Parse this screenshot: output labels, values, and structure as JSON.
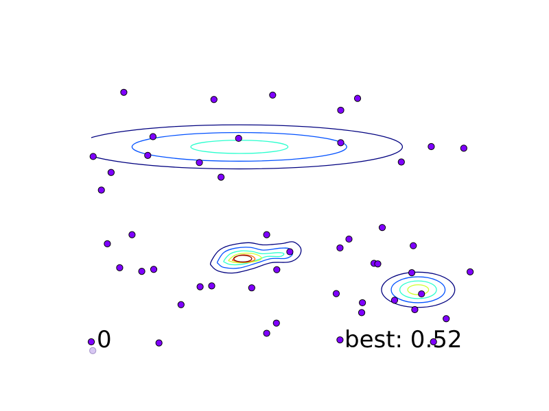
{
  "iteration_label": "0",
  "best_label": "best: 0.52",
  "colors": {
    "point_fill": "#7f00ff",
    "point_edge": "#000000",
    "ghost_point_fill": "#d7c7f2",
    "ghost_point_edge": "#a493c8"
  },
  "chart_data": {
    "type": "scatter",
    "title": "",
    "xlabel": "",
    "ylabel": "",
    "xlim": [
      0,
      1
    ],
    "ylim": [
      0,
      1
    ],
    "grid": false,
    "axes_visible": false,
    "points": [
      [
        0.087,
        0.906
      ],
      [
        0.328,
        0.88
      ],
      [
        0.485,
        0.896
      ],
      [
        0.712,
        0.884
      ],
      [
        0.667,
        0.841
      ],
      [
        0.165,
        0.745
      ],
      [
        0.394,
        0.739
      ],
      [
        0.667,
        0.723
      ],
      [
        0.909,
        0.709
      ],
      [
        0.996,
        0.703
      ],
      [
        0.005,
        0.673
      ],
      [
        0.151,
        0.677
      ],
      [
        0.289,
        0.651
      ],
      [
        0.829,
        0.653
      ],
      [
        0.053,
        0.615
      ],
      [
        0.347,
        0.598
      ],
      [
        0.027,
        0.551
      ],
      [
        0.109,
        0.389
      ],
      [
        0.469,
        0.389
      ],
      [
        0.689,
        0.373
      ],
      [
        0.778,
        0.415
      ],
      [
        0.043,
        0.356
      ],
      [
        0.861,
        0.349
      ],
      [
        0.531,
        0.327
      ],
      [
        0.665,
        0.341
      ],
      [
        0.756,
        0.285
      ],
      [
        0.766,
        0.283
      ],
      [
        0.076,
        0.269
      ],
      [
        0.135,
        0.256
      ],
      [
        0.167,
        0.263
      ],
      [
        0.496,
        0.262
      ],
      [
        0.857,
        0.251
      ],
      [
        1.013,
        0.254
      ],
      [
        0.291,
        0.2
      ],
      [
        0.322,
        0.203
      ],
      [
        0.429,
        0.196
      ],
      [
        0.655,
        0.175
      ],
      [
        0.883,
        0.174
      ],
      [
        0.811,
        0.151
      ],
      [
        0.725,
        0.142
      ],
      [
        0.24,
        0.135
      ],
      [
        0.865,
        0.117
      ],
      [
        0.723,
        0.106
      ],
      [
        0.949,
        0.084
      ],
      [
        0.495,
        0.068
      ],
      [
        0.469,
        0.031
      ],
      [
        0.0,
        0.0
      ],
      [
        0.181,
        -0.004
      ],
      [
        0.665,
        0.007
      ],
      [
        0.915,
        0.0
      ]
    ],
    "ghost_points": [
      [
        0.004,
        -0.032
      ]
    ],
    "contours": [
      {
        "name": "top-ellipse",
        "center": [
          0.396,
          0.708
        ],
        "levels": [
          {
            "color": "#00007f",
            "rx": 0.436,
            "ry": 0.08
          },
          {
            "color": "#0050ff",
            "rx": 0.287,
            "ry": 0.052
          },
          {
            "color": "#29ffce",
            "rx": 0.13,
            "ry": 0.024
          }
        ]
      },
      {
        "name": "middle-blob",
        "levels": [
          {
            "color": "#00007f",
            "path": [
              [
                0.32,
                0.29
              ],
              [
                0.34,
                0.33
              ],
              [
                0.37,
                0.35
              ],
              [
                0.42,
                0.36
              ],
              [
                0.46,
                0.352
              ],
              [
                0.51,
                0.357
              ],
              [
                0.54,
                0.363
              ],
              [
                0.56,
                0.34
              ],
              [
                0.555,
                0.31
              ],
              [
                0.53,
                0.29
              ],
              [
                0.48,
                0.287
              ],
              [
                0.43,
                0.265
              ],
              [
                0.38,
                0.25
              ],
              [
                0.34,
                0.257
              ],
              [
                0.322,
                0.275
              ]
            ]
          },
          {
            "color": "#0050ff",
            "path": [
              [
                0.338,
                0.292
              ],
              [
                0.355,
                0.325
              ],
              [
                0.385,
                0.34
              ],
              [
                0.425,
                0.343
              ],
              [
                0.46,
                0.333
              ],
              [
                0.505,
                0.34
              ],
              [
                0.53,
                0.338
              ],
              [
                0.538,
                0.318
              ],
              [
                0.52,
                0.303
              ],
              [
                0.48,
                0.302
              ],
              [
                0.44,
                0.285
              ],
              [
                0.395,
                0.268
              ],
              [
                0.355,
                0.27
              ],
              [
                0.34,
                0.283
              ]
            ]
          },
          {
            "color": "#29ffce",
            "path": [
              [
                0.355,
                0.295
              ],
              [
                0.372,
                0.32
              ],
              [
                0.4,
                0.33
              ],
              [
                0.43,
                0.328
              ],
              [
                0.458,
                0.32
              ],
              [
                0.5,
                0.324
              ],
              [
                0.515,
                0.32
              ],
              [
                0.505,
                0.31
              ],
              [
                0.47,
                0.31
              ],
              [
                0.445,
                0.298
              ],
              [
                0.41,
                0.283
              ],
              [
                0.375,
                0.28
              ],
              [
                0.358,
                0.288
              ]
            ]
          },
          {
            "color": "#ceff29",
            "path": [
              [
                0.368,
                0.297
              ],
              [
                0.385,
                0.315
              ],
              [
                0.41,
                0.322
              ],
              [
                0.44,
                0.318
              ],
              [
                0.455,
                0.305
              ],
              [
                0.445,
                0.294
              ],
              [
                0.415,
                0.288
              ],
              [
                0.385,
                0.288
              ],
              [
                0.37,
                0.293
              ]
            ]
          },
          {
            "color": "#ff6800",
            "path": [
              [
                0.378,
                0.298
              ],
              [
                0.392,
                0.312
              ],
              [
                0.412,
                0.316
              ],
              [
                0.432,
                0.31
              ],
              [
                0.437,
                0.298
              ],
              [
                0.42,
                0.29
              ],
              [
                0.395,
                0.29
              ],
              [
                0.38,
                0.295
              ]
            ]
          }
        ],
        "peak": {
          "color": "#7f0000",
          "center": [
            0.405,
            0.302
          ],
          "rx": 0.024,
          "ry": 0.012
        }
      },
      {
        "name": "right-circle",
        "center": [
          0.874,
          0.189
        ],
        "levels": [
          {
            "color": "#00007f",
            "rx": 0.098,
            "ry": 0.064
          },
          {
            "color": "#0050ff",
            "rx": 0.072,
            "ry": 0.047
          },
          {
            "color": "#29ffce",
            "rx": 0.049,
            "ry": 0.032
          },
          {
            "color": "#ceff29",
            "rx": 0.028,
            "ry": 0.018
          }
        ]
      }
    ]
  }
}
